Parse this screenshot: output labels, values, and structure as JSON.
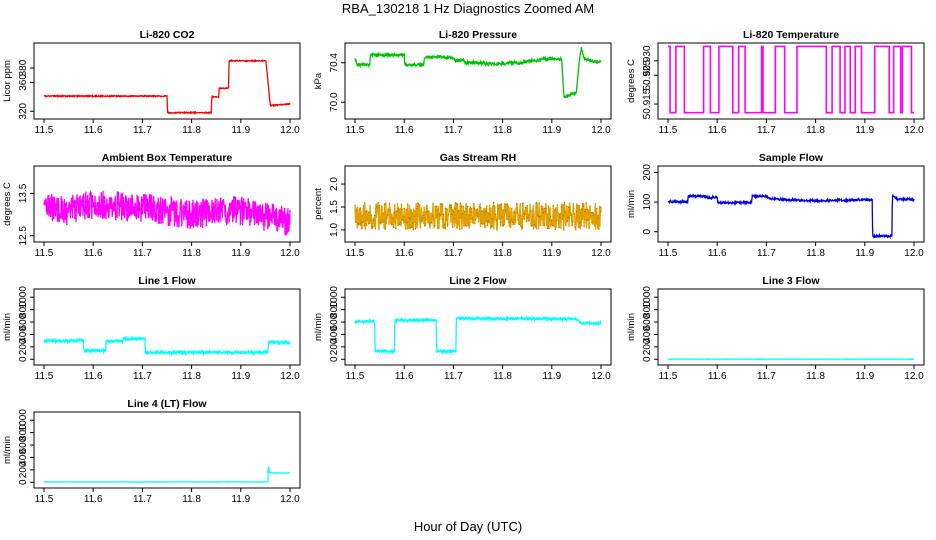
{
  "figure": {
    "title": "RBA_130218  1 Hz Diagnostics Zoomed AM",
    "xlabel": "Hour of Day (UTC)"
  },
  "chart_data": [
    {
      "id": "co2",
      "type": "line",
      "title": "Li-820 CO2",
      "ylabel": "Licor ppm",
      "color": "#ff0000",
      "xlim": [
        11.5,
        12.0
      ],
      "ylim": [
        312,
        412
      ],
      "xticks": [
        "11.5",
        "11.6",
        "11.7",
        "11.8",
        "11.9",
        "12.0"
      ],
      "yticks": [
        "320",
        "360",
        "380"
      ],
      "noise": 0.7,
      "marker": "",
      "series": [
        {
          "x": [
            11.5,
            11.75,
            11.751,
            11.84,
            11.841,
            11.855,
            11.856,
            11.875,
            11.876,
            11.95,
            11.951,
            11.96,
            11.961,
            12.0
          ],
          "y": [
            341,
            341,
            318,
            318,
            340,
            340,
            352,
            352,
            390,
            390,
            390,
            328,
            328,
            330
          ]
        }
      ]
    },
    {
      "id": "pressure",
      "type": "line",
      "title": "Li-820 Pressure",
      "ylabel": "kPa",
      "color": "#00c000",
      "xlim": [
        11.5,
        12.0
      ],
      "ylim": [
        69.85,
        70.58
      ],
      "xticks": [
        "11.5",
        "11.6",
        "11.7",
        "11.8",
        "11.9",
        "12.0"
      ],
      "yticks": [
        "70.0",
        "70.4"
      ],
      "noise": 0.015,
      "marker": "",
      "series": [
        {
          "x": [
            11.5,
            11.505,
            11.506,
            11.53,
            11.531,
            11.6,
            11.601,
            11.64,
            11.641,
            11.66,
            11.661,
            11.7,
            11.705,
            11.72,
            11.725,
            11.76,
            11.765,
            11.79,
            11.82,
            11.84,
            11.85,
            11.87,
            11.88,
            11.9,
            11.901,
            11.92,
            11.925,
            11.926,
            11.95,
            11.955,
            11.96,
            11.965,
            11.985,
            12.0
          ],
          "y": [
            70.44,
            70.38,
            70.38,
            70.38,
            70.48,
            70.48,
            70.38,
            70.38,
            70.46,
            70.46,
            70.46,
            70.45,
            70.42,
            70.43,
            70.4,
            70.4,
            70.39,
            70.39,
            70.4,
            70.4,
            70.42,
            70.42,
            70.44,
            70.44,
            70.44,
            70.44,
            70.05,
            70.05,
            70.1,
            70.38,
            70.55,
            70.45,
            70.41,
            70.41
          ]
        }
      ]
    },
    {
      "id": "licor_temp",
      "type": "line",
      "title": "Li-820 Temperature",
      "ylabel": "degrees C",
      "color": "#ff00ff",
      "xlim": [
        11.5,
        12.0
      ],
      "ylim": [
        50.9105,
        50.9355
      ],
      "xticks": [
        "11.5",
        "11.6",
        "11.7",
        "11.8",
        "11.9",
        "12.0"
      ],
      "yticks": [
        "50.915",
        "50.930"
      ],
      "yticks_stacked": [
        "50.925"
      ],
      "style": "square_wave",
      "seed": 11,
      "y_levels": [
        50.912,
        50.935
      ],
      "marker": "",
      "series": []
    },
    {
      "id": "ambient_temp",
      "type": "line",
      "title": "Ambient Box Temperature",
      "ylabel": "degrees C",
      "color": "#ff00ff",
      "xlim": [
        11.5,
        12.0
      ],
      "ylim": [
        12.4,
        14.1
      ],
      "xticks": [
        "11.5",
        "11.6",
        "11.7",
        "11.8",
        "11.9",
        "12.0"
      ],
      "yticks": [
        "12.5",
        "13.5"
      ],
      "noise": 0.35,
      "seed": 3,
      "marker": "",
      "series": [
        {
          "x": [
            11.5,
            11.55,
            11.6,
            11.7,
            11.8,
            11.9,
            11.95,
            12.0
          ],
          "y": [
            13.15,
            13.1,
            13.25,
            13.15,
            13.0,
            13.1,
            12.95,
            12.8
          ]
        }
      ]
    },
    {
      "id": "rh",
      "type": "line",
      "title": "Gas Stream RH",
      "ylabel": "percent",
      "color": "#e0a000",
      "xlim": [
        11.5,
        12.0
      ],
      "ylim": [
        0.78,
        2.35
      ],
      "xticks": [
        "11.5",
        "11.6",
        "11.7",
        "11.8",
        "11.9",
        "12.0"
      ],
      "yticks": [
        "1.0",
        "1.5",
        "2.0"
      ],
      "noise": 0.3,
      "seed": 7,
      "marker": "dot",
      "series": [
        {
          "x": [
            11.5,
            12.0
          ],
          "y": [
            1.3,
            1.3
          ]
        }
      ]
    },
    {
      "id": "sample_flow",
      "type": "line",
      "title": "Sample Flow",
      "ylabel": "ml/min",
      "color": "#0000e0",
      "xlim": [
        11.5,
        12.0
      ],
      "ylim": [
        -28,
        215
      ],
      "xticks": [
        "11.5",
        "11.6",
        "11.7",
        "11.8",
        "11.9",
        "12.0"
      ],
      "yticks": [
        "0",
        "100",
        "200"
      ],
      "noise": 3.5,
      "seed": 5,
      "marker": "",
      "series": [
        {
          "x": [
            11.5,
            11.54,
            11.541,
            11.575,
            11.58,
            11.6,
            11.601,
            11.6,
            11.605,
            11.62,
            11.67,
            11.671,
            11.7,
            11.705,
            11.72,
            11.74,
            11.8,
            11.9,
            11.915,
            11.916,
            11.955,
            11.956,
            11.96,
            11.965,
            12.0
          ],
          "y": [
            101,
            101,
            120,
            120,
            115,
            115,
            100,
            100,
            98,
            98,
            98,
            120,
            120,
            112,
            110,
            108,
            104,
            108,
            108,
            -15,
            -15,
            120,
            120,
            110,
            108
          ]
        }
      ]
    },
    {
      "id": "line1_flow",
      "type": "line",
      "title": "Line 1 Flow",
      "ylabel": "ml/min",
      "color": "#00ffff",
      "xlim": [
        11.5,
        12.0
      ],
      "ylim": [
        -60,
        1100
      ],
      "xticks": [
        "11.5",
        "11.6",
        "11.7",
        "11.8",
        "11.9",
        "12.0"
      ],
      "yticks": [
        "0",
        "400",
        "800"
      ],
      "yticks_stacked": [
        "200",
        "600",
        "1000"
      ],
      "noise": 25,
      "seed": 9,
      "marker": "",
      "series": [
        {
          "x": [
            11.5,
            11.58,
            11.581,
            11.625,
            11.626,
            11.66,
            11.661,
            11.705,
            11.706,
            11.71,
            11.955,
            11.956,
            12.0
          ],
          "y": [
            300,
            300,
            140,
            140,
            290,
            290,
            330,
            330,
            110,
            110,
            110,
            270,
            270
          ]
        }
      ]
    },
    {
      "id": "line2_flow",
      "type": "line",
      "title": "Line 2 Flow",
      "ylabel": "ml/min",
      "color": "#00ffff",
      "xlim": [
        11.5,
        12.0
      ],
      "ylim": [
        -60,
        1100
      ],
      "xticks": [
        "11.5",
        "11.6",
        "11.7",
        "11.8",
        "11.9",
        "12.0"
      ],
      "yticks": [
        "0",
        "400",
        "800"
      ],
      "yticks_stacked": [
        "200",
        "600",
        "1000"
      ],
      "noise": 20,
      "seed": 13,
      "marker": "",
      "series": [
        {
          "x": [
            11.5,
            11.54,
            11.541,
            11.58,
            11.581,
            11.665,
            11.666,
            11.705,
            11.706,
            11.95,
            11.96,
            12.0
          ],
          "y": [
            610,
            610,
            130,
            130,
            630,
            630,
            130,
            130,
            660,
            650,
            580,
            580
          ]
        }
      ]
    },
    {
      "id": "line3_flow",
      "type": "line",
      "title": "Line 3 Flow",
      "ylabel": "ml/min",
      "color": "#00ffff",
      "xlim": [
        11.5,
        12.0
      ],
      "ylim": [
        -60,
        1100
      ],
      "xticks": [
        "11.5",
        "11.6",
        "11.7",
        "11.8",
        "11.9",
        "12.0"
      ],
      "yticks": [
        "0",
        "400",
        "800"
      ],
      "yticks_stacked": [
        "200",
        "600",
        "1000"
      ],
      "noise": 1.5,
      "seed": 15,
      "marker": "",
      "series": [
        {
          "x": [
            11.5,
            12.0
          ],
          "y": [
            3,
            3
          ]
        }
      ]
    },
    {
      "id": "line4_flow",
      "type": "line",
      "title": "Line 4 (LT) Flow",
      "ylabel": "ml/min",
      "color": "#00ffff",
      "xlim": [
        11.5,
        12.0
      ],
      "ylim": [
        -60,
        1100
      ],
      "xticks": [
        "11.5",
        "11.6",
        "11.7",
        "11.8",
        "11.9",
        "12.0"
      ],
      "yticks": [
        "0",
        "400",
        "800"
      ],
      "yticks_stacked": [
        "200",
        "600",
        "1000"
      ],
      "noise": 2,
      "seed": 17,
      "marker": "",
      "series": [
        {
          "x": [
            11.5,
            11.955,
            11.956,
            11.958,
            11.965,
            12.0
          ],
          "y": [
            5,
            5,
            280,
            160,
            150,
            150
          ]
        }
      ]
    }
  ]
}
